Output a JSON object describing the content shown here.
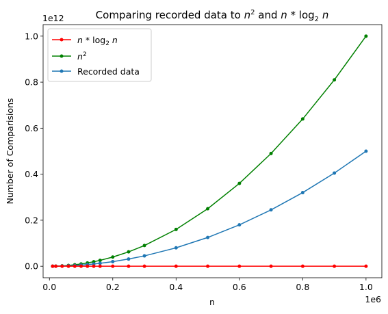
{
  "chart_data": {
    "type": "line",
    "title": {
      "prefix": "Comparing recorded data to ",
      "n1": "n",
      "sup": "2",
      "mid": " and ",
      "n2": "n",
      "star": " * log",
      "sub": "2",
      "n3": " n"
    },
    "xlabel": "n",
    "ylabel": "Number of Comparisions",
    "x_offset_text": "1e6",
    "y_offset_text": "1e12",
    "xlim": [
      -20000,
      1050000
    ],
    "ylim": [
      -50000000000.0,
      1050000000000.0
    ],
    "x_ticks": [
      0,
      200000,
      400000,
      600000,
      800000,
      1000000
    ],
    "x_tick_labels": [
      "0.0",
      "0.2",
      "0.4",
      "0.6",
      "0.8",
      "1.0"
    ],
    "y_ticks": [
      0,
      200000000000,
      400000000000,
      600000000000,
      800000000000,
      1000000000000
    ],
    "y_tick_labels": [
      "0.0",
      "0.2",
      "0.4",
      "0.6",
      "0.8",
      "1.0"
    ],
    "grid": false,
    "legend_position": "upper-left",
    "x": [
      10000,
      20000,
      40000,
      60000,
      80000,
      100000,
      120000,
      140000,
      160000,
      200000,
      250000,
      300000,
      400000,
      500000,
      600000,
      700000,
      800000,
      900000,
      1000000
    ],
    "series": [
      {
        "name": "n * log2 n",
        "legend_label": {
          "n1": "n",
          "star": " * log",
          "sub": "2",
          "n2": " n"
        },
        "color": "#ff0000",
        "values": [
          132877,
          285754,
          611508,
          952196,
          1303016,
          1660964,
          2024430,
          2392506,
          2764032,
          3521928,
          4481237,
          5455574,
          7442277,
          9465784,
          11518057,
          13592977,
          15686554,
          17795802,
          19931569
        ]
      },
      {
        "name": "n^2",
        "legend_label": {
          "n1": "n",
          "sup": "2"
        },
        "color": "#008000",
        "values": [
          100000000,
          400000000,
          1600000000,
          3600000000,
          6400000000,
          10000000000,
          14400000000,
          19600000000,
          25600000000,
          40000000000,
          62500000000,
          90000000000,
          160000000000,
          250000000000,
          360000000000,
          490000000000,
          640000000000,
          810000000000,
          1000000000000
        ]
      },
      {
        "name": "Recorded data",
        "legend_label": {
          "text": "Recorded data"
        },
        "color": "#1f77b4",
        "values": [
          49995000,
          199990000,
          799980000,
          1799970000,
          3199960000,
          4999950000,
          7199940000,
          9799930000,
          12799920000,
          19999900000,
          31249875000,
          44999850000,
          79999800000,
          124999750000,
          179999700000,
          244999650000,
          319999600000,
          404999550000,
          499999500000
        ]
      }
    ]
  }
}
